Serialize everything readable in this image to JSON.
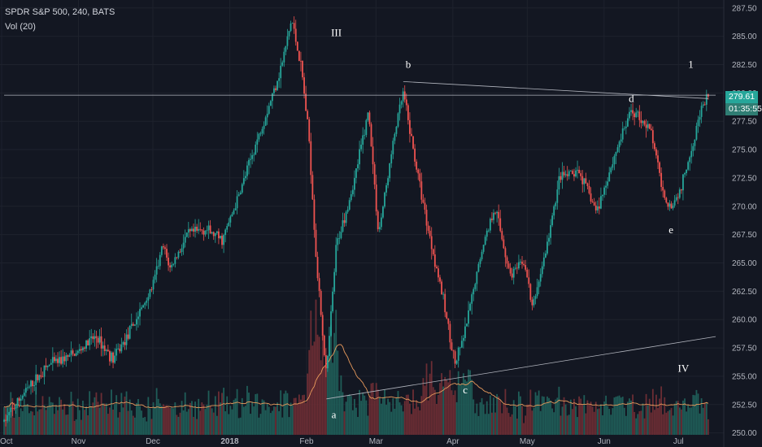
{
  "header": {
    "symbol_line": "SPDR S&P 500, 240, BATS",
    "volume_line": "Vol (20)"
  },
  "price_tags": {
    "last_price": "279.61",
    "countdown": "01:35:55",
    "last_price_color": "#26a69a",
    "countdown_color": "#2f7d73"
  },
  "chart_data": {
    "type": "candlestick",
    "ylim": [
      248.9,
      288.2
    ],
    "y_ticks": [
      "287.50",
      "285.00",
      "282.50",
      "280.00",
      "277.50",
      "275.00",
      "272.50",
      "270.00",
      "267.50",
      "265.00",
      "262.50",
      "260.00",
      "257.50",
      "255.00",
      "252.50",
      "250.00"
    ],
    "x_ticks": [
      "Oct",
      "Nov",
      "Dec",
      "2018",
      "Feb",
      "Mar",
      "Apr",
      "May",
      "Jun",
      "Jul"
    ],
    "grid": true,
    "colors": {
      "up": "#26a69a",
      "down": "#ef5350",
      "volume_ma": "#e89a5c",
      "trendline": "#b2b5be",
      "background": "#131722"
    },
    "price_path": [
      [
        "2017-10-02",
        251.0
      ],
      [
        "2017-10-10",
        253.5
      ],
      [
        "2017-10-20",
        256.0
      ],
      [
        "2017-10-31",
        257.0
      ],
      [
        "2017-11-08",
        258.5
      ],
      [
        "2017-11-15",
        256.5
      ],
      [
        "2017-11-22",
        259.0
      ],
      [
        "2017-12-01",
        263.0
      ],
      [
        "2017-12-05",
        266.5
      ],
      [
        "2017-12-08",
        264.5
      ],
      [
        "2017-12-15",
        267.5
      ],
      [
        "2017-12-22",
        268.0
      ],
      [
        "2017-12-29",
        267.0
      ],
      [
        "2018-01-04",
        270.5
      ],
      [
        "2018-01-10",
        274.5
      ],
      [
        "2018-01-17",
        279.0
      ],
      [
        "2018-01-22",
        282.5
      ],
      [
        "2018-01-26",
        286.5
      ],
      [
        "2018-01-30",
        282.0
      ],
      [
        "2018-02-02",
        276.0
      ],
      [
        "2018-02-05",
        265.0
      ],
      [
        "2018-02-08",
        257.5
      ],
      [
        "2018-02-09",
        255.0
      ],
      [
        "2018-02-13",
        266.5
      ],
      [
        "2018-02-20",
        272.0
      ],
      [
        "2018-02-26",
        278.5
      ],
      [
        "2018-03-02",
        267.5
      ],
      [
        "2018-03-09",
        277.0
      ],
      [
        "2018-03-12",
        280.0
      ],
      [
        "2018-03-16",
        275.0
      ],
      [
        "2018-03-22",
        268.0
      ],
      [
        "2018-03-27",
        263.0
      ],
      [
        "2018-04-02",
        256.0
      ],
      [
        "2018-04-06",
        259.0
      ],
      [
        "2018-04-13",
        266.5
      ],
      [
        "2018-04-18",
        270.0
      ],
      [
        "2018-04-24",
        264.0
      ],
      [
        "2018-04-30",
        265.0
      ],
      [
        "2018-05-03",
        261.0
      ],
      [
        "2018-05-09",
        266.5
      ],
      [
        "2018-05-14",
        272.5
      ],
      [
        "2018-05-22",
        273.0
      ],
      [
        "2018-05-29",
        269.5
      ],
      [
        "2018-06-06",
        275.0
      ],
      [
        "2018-06-12",
        278.5
      ],
      [
        "2018-06-15",
        278.0
      ],
      [
        "2018-06-20",
        276.5
      ],
      [
        "2018-06-25",
        271.0
      ],
      [
        "2018-06-28",
        270.0
      ],
      [
        "2018-07-02",
        271.5
      ],
      [
        "2018-07-06",
        275.0
      ],
      [
        "2018-07-10",
        278.5
      ],
      [
        "2018-07-13",
        279.61
      ]
    ],
    "trendlines": [
      {
        "from": [
          "2018-03-12",
          281.0
        ],
        "to": [
          "2018-07-13",
          279.5
        ]
      },
      {
        "from": [
          "2018-02-09",
          253.0
        ],
        "to": [
          "2018-07-16",
          258.5
        ]
      },
      {
        "from": [
          "2017-10-02",
          279.8
        ],
        "to": [
          "2018-07-16",
          279.8
        ]
      }
    ],
    "annotations": [
      {
        "text": "III",
        "date": "2018-02-13",
        "price": 285.0
      },
      {
        "text": "b",
        "date": "2018-03-14",
        "price": 282.2
      },
      {
        "text": "1",
        "date": "2018-07-06",
        "price": 282.2
      },
      {
        "text": "d",
        "date": "2018-06-12",
        "price": 279.2
      },
      {
        "text": "e",
        "date": "2018-06-28",
        "price": 267.6
      },
      {
        "text": "IV",
        "date": "2018-07-03",
        "price": 255.4
      },
      {
        "text": "c",
        "date": "2018-04-06",
        "price": 253.5
      },
      {
        "text": "a",
        "date": "2018-02-12",
        "price": 251.3
      }
    ]
  }
}
